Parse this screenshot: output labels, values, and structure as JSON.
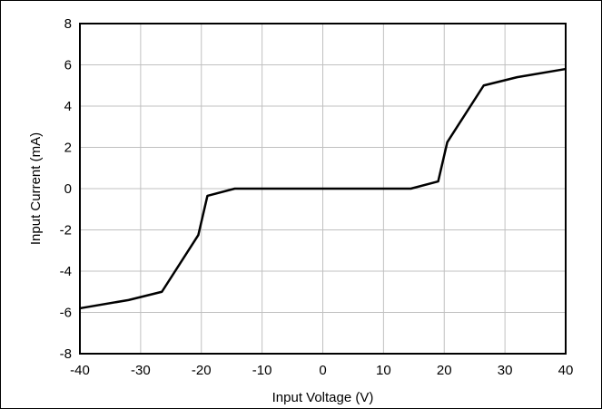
{
  "chart_data": {
    "type": "line",
    "xlabel": "Input Voltage (V)",
    "ylabel": "Input Current (mA)",
    "xlim": [
      -40,
      40
    ],
    "ylim": [
      -8,
      8
    ],
    "xticks": [
      -40,
      -30,
      -20,
      -10,
      0,
      10,
      20,
      30,
      40
    ],
    "yticks": [
      -8,
      -6,
      -4,
      -2,
      0,
      2,
      4,
      6,
      8
    ],
    "xtick_labels": [
      "-40",
      "-30",
      "-20",
      "-10",
      "0",
      "10",
      "20",
      "30",
      "40"
    ],
    "ytick_labels": [
      "-8",
      "-6",
      "-4",
      "-2",
      "0",
      "2",
      "4",
      "6",
      "8"
    ],
    "grid": true,
    "series": [
      {
        "color": "#000000",
        "x": [
          -40,
          -32,
          -26.5,
          -20.5,
          -19,
          -14.5,
          14.5,
          19,
          20.5,
          26.5,
          32,
          40
        ],
        "y": [
          -5.8,
          -5.4,
          -5.0,
          -2.25,
          -0.35,
          0,
          0,
          0.35,
          2.25,
          5.0,
          5.4,
          5.8
        ]
      }
    ]
  }
}
